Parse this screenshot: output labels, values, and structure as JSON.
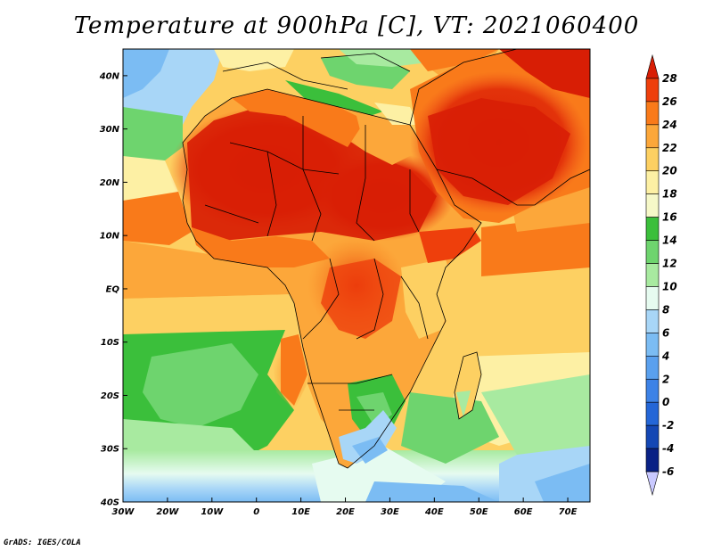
{
  "title": "Temperature at 900hPa [C], VT: 2021060400",
  "credit": "GrADS: IGES/COLA",
  "map": {
    "lon_range": [
      -30,
      75
    ],
    "lat_range": [
      -40,
      45
    ],
    "lon_ticks": [
      {
        "value": -30,
        "label": "30W"
      },
      {
        "value": -20,
        "label": "20W"
      },
      {
        "value": -10,
        "label": "10W"
      },
      {
        "value": 0,
        "label": "0"
      },
      {
        "value": 10,
        "label": "10E"
      },
      {
        "value": 20,
        "label": "20E"
      },
      {
        "value": 30,
        "label": "30E"
      },
      {
        "value": 40,
        "label": "40E"
      },
      {
        "value": 50,
        "label": "50E"
      },
      {
        "value": 60,
        "label": "60E"
      },
      {
        "value": 70,
        "label": "70E"
      }
    ],
    "lat_ticks": [
      {
        "value": 40,
        "label": "40N"
      },
      {
        "value": 30,
        "label": "30N"
      },
      {
        "value": 20,
        "label": "20N"
      },
      {
        "value": 10,
        "label": "10N"
      },
      {
        "value": 0,
        "label": "EQ"
      },
      {
        "value": -10,
        "label": "10S"
      },
      {
        "value": -20,
        "label": "20S"
      },
      {
        "value": -30,
        "label": "30S"
      },
      {
        "value": -40,
        "label": "40S"
      }
    ]
  },
  "colorbar": {
    "labels": [
      "28",
      "26",
      "24",
      "22",
      "20",
      "18",
      "16",
      "14",
      "12",
      "10",
      "8",
      "6",
      "4",
      "2",
      "0",
      "-2",
      "-4",
      "-6"
    ],
    "colors": [
      "#d81e05",
      "#ee3f0c",
      "#f97a1a",
      "#fca73a",
      "#fdd062",
      "#fdf0a4",
      "#f6f8c8",
      "#3bbf3b",
      "#6ed46e",
      "#a8eaa0",
      "#e6fbf0",
      "#a8d6f7",
      "#7bbcf3",
      "#5aa0ee",
      "#3d82e6",
      "#2466d7",
      "#1447b4",
      "#0a2185",
      "#c9c9ff"
    ]
  }
}
